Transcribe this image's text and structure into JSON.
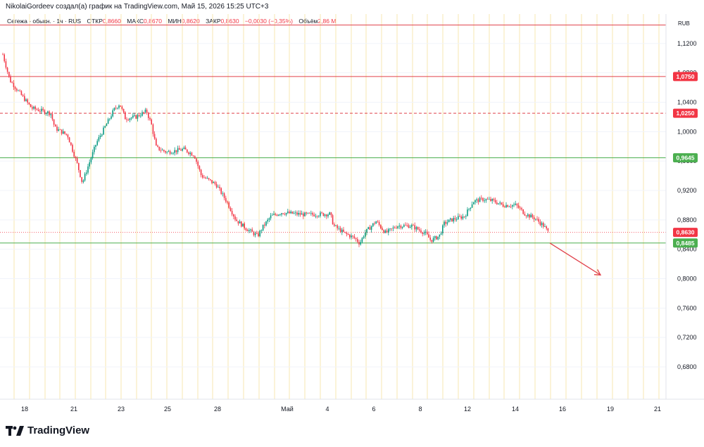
{
  "credit": "NikolaiGordeev создал(а) график на TradingView.com, Май 15, 2026 15:25 UTC+3",
  "legend": {
    "symbol": "Сегежа - обыкн. · 1ч · RUS",
    "open_label": "ОТКР",
    "open": "0,8660",
    "high_label": "МАКС",
    "high": "0,8670",
    "low_label": "МИН",
    "low": "0,8620",
    "close_label": "ЗАКР",
    "close": "0,8630",
    "change": "−0,0030 (−0,35%)",
    "volume_label": "Объём",
    "volume": "2,86 M"
  },
  "currency": "RUB",
  "brand": "TradingView",
  "colors": {
    "up": "#089981",
    "down": "#f23645",
    "resistance": "#e0404a",
    "support": "#4caf50",
    "session_line": "#f7e7b0",
    "arrow": "#e0404a"
  },
  "chart_data": {
    "type": "candlestick",
    "price_axis": {
      "ylim": [
        0.636,
        1.16
      ],
      "ticks": [
        1.12,
        1.08,
        1.04,
        1.0,
        0.96,
        0.92,
        0.88,
        0.84,
        0.8,
        0.76,
        0.72,
        0.68
      ],
      "tick_labels": [
        "1,1200",
        "1,0800",
        "1,0400",
        "1,0000",
        "0,9600",
        "0,9200",
        "0,8800",
        "0,8400",
        "0,8000",
        "0,7600",
        "0,7200",
        "0,6800"
      ]
    },
    "time_axis": {
      "labels": [
        "18",
        "21",
        "23",
        "25",
        "28",
        "Май",
        "4",
        "6",
        "8",
        "12",
        "14",
        "16",
        "19",
        "21"
      ]
    },
    "levels": [
      {
        "price": 1.145,
        "style": "solid",
        "color": "#e0404a",
        "label": ""
      },
      {
        "price": 1.075,
        "style": "solid",
        "color": "#e0404a",
        "label": "1,0750"
      },
      {
        "price": 1.025,
        "style": "dashed",
        "color": "#e0404a",
        "label": "1,0250"
      },
      {
        "price": 0.9645,
        "style": "solid",
        "color": "#4caf50",
        "label": "0,9645"
      },
      {
        "price": 0.8485,
        "style": "solid",
        "color": "#4caf50",
        "label": "0,8485"
      }
    ],
    "last_price": {
      "price": 0.863,
      "label": "0,8630"
    },
    "path": [
      [
        0,
        1.135
      ],
      [
        4,
        1.105
      ],
      [
        14,
        1.07
      ],
      [
        30,
        1.05
      ],
      [
        45,
        1.032
      ],
      [
        72,
        1.025
      ],
      [
        78,
        1.005
      ],
      [
        96,
        0.995
      ],
      [
        110,
        0.955
      ],
      [
        117,
        0.93
      ],
      [
        124,
        0.95
      ],
      [
        137,
        0.985
      ],
      [
        154,
        1.015
      ],
      [
        162,
        1.03
      ],
      [
        170,
        1.038
      ],
      [
        178,
        1.018
      ],
      [
        193,
        1.02
      ],
      [
        208,
        1.028
      ],
      [
        215,
        1.01
      ],
      [
        222,
        0.978
      ],
      [
        237,
        0.972
      ],
      [
        261,
        0.976
      ],
      [
        276,
        0.968
      ],
      [
        286,
        0.94
      ],
      [
        307,
        0.928
      ],
      [
        322,
        0.905
      ],
      [
        335,
        0.88
      ],
      [
        350,
        0.868
      ],
      [
        366,
        0.858
      ],
      [
        373,
        0.87
      ],
      [
        385,
        0.885
      ],
      [
        400,
        0.89
      ],
      [
        434,
        0.887
      ],
      [
        469,
        0.888
      ],
      [
        474,
        0.872
      ],
      [
        489,
        0.862
      ],
      [
        504,
        0.855
      ],
      [
        511,
        0.848
      ],
      [
        518,
        0.862
      ],
      [
        534,
        0.878
      ],
      [
        548,
        0.862
      ],
      [
        564,
        0.872
      ],
      [
        584,
        0.872
      ],
      [
        604,
        0.862
      ],
      [
        612,
        0.852
      ],
      [
        624,
        0.858
      ],
      [
        631,
        0.875
      ],
      [
        641,
        0.88
      ],
      [
        660,
        0.885
      ],
      [
        672,
        0.905
      ],
      [
        686,
        0.908
      ],
      [
        700,
        0.906
      ],
      [
        714,
        0.9
      ],
      [
        733,
        0.9
      ],
      [
        746,
        0.888
      ],
      [
        760,
        0.882
      ],
      [
        772,
        0.872
      ],
      [
        779,
        0.863
      ]
    ],
    "forecast_arrow": {
      "from": {
        "x": 781,
        "y": 0.8485
      },
      "to": {
        "x": 853,
        "y": 0.805
      }
    }
  }
}
